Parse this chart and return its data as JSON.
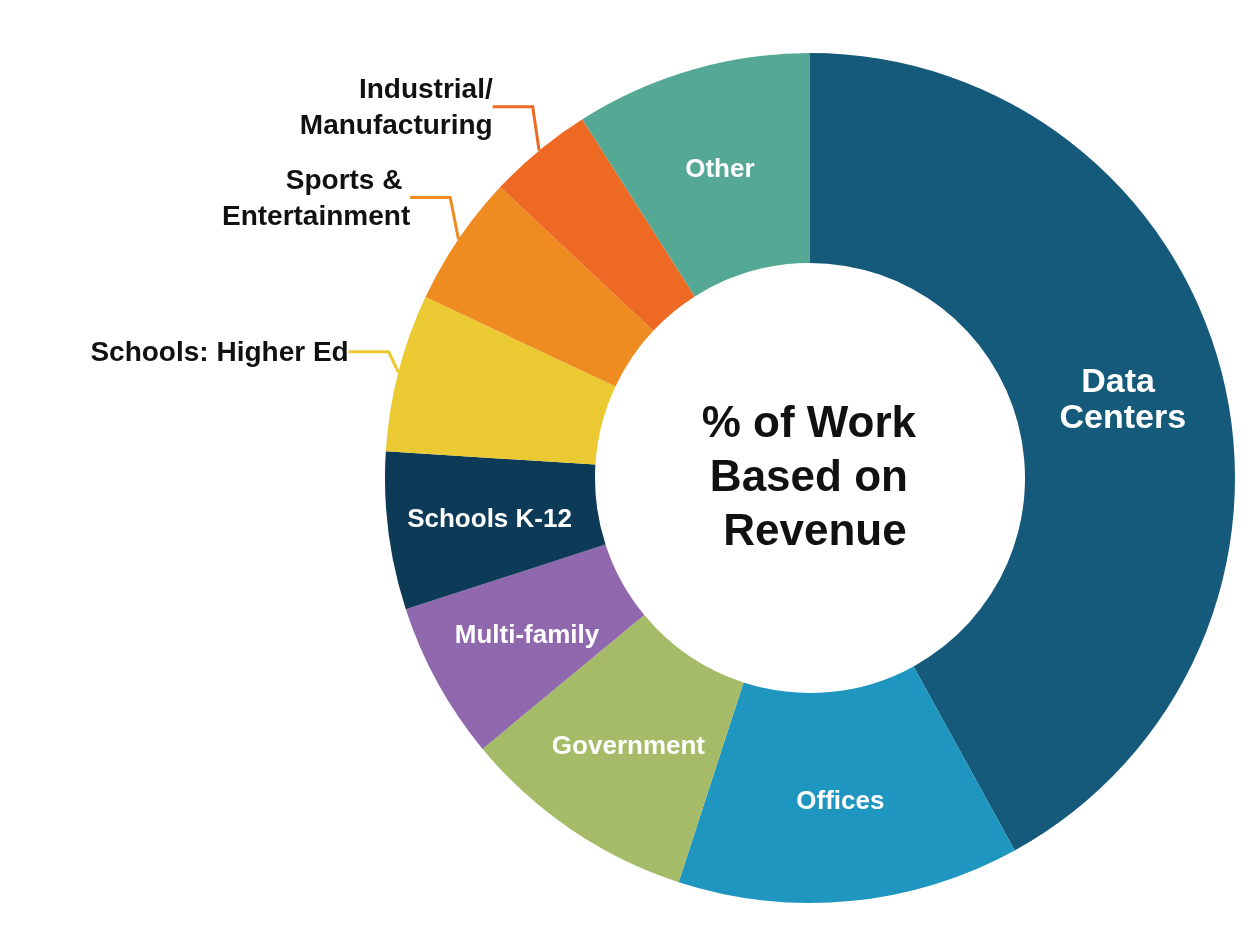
{
  "chart_data": {
    "type": "donut",
    "title": "% of Work Based on Revenue",
    "categories": [
      "Data Centers",
      "Offices",
      "Government",
      "Multi-family",
      "Schools K-12",
      "Schools: Higher Ed",
      "Sports & Entertainment",
      "Industrial/Manufacturing",
      "Other"
    ],
    "values": [
      42,
      13,
      9,
      6,
      6,
      6,
      5,
      4,
      9
    ],
    "colors": [
      "#155a7a",
      "#1e96c0",
      "#a6bb68",
      "#9068ad",
      "#0d3a57",
      "#ebc932",
      "#ee8c22",
      "#ee6a24",
      "#55a994"
    ],
    "legend": false
  }
}
